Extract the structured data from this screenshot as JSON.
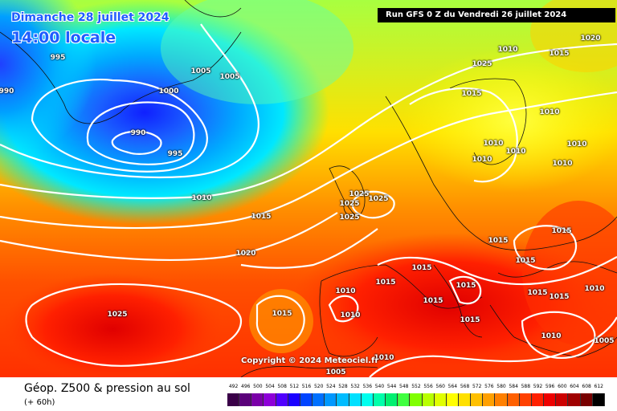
{
  "header": {
    "date_title": "Dimanche 28 juillet 2024",
    "time_title": "14:00 locale",
    "run_info": "Run GFS 0 Z du Vendredi 26 juillet 2024"
  },
  "copyright": "Copyright © 2024 Meteociel.fr",
  "legend": {
    "parameter": "Géop. Z500 & pression au sol",
    "lead_time": "(+ 60h)",
    "scale_values": [
      "492",
      "496",
      "500",
      "504",
      "508",
      "512",
      "516",
      "520",
      "524",
      "528",
      "532",
      "536",
      "540",
      "544",
      "548",
      "552",
      "556",
      "560",
      "564",
      "568",
      "572",
      "576",
      "580",
      "584",
      "588",
      "592",
      "596",
      "600",
      "604",
      "608",
      "612"
    ],
    "scale_colors": [
      "#3a0048",
      "#5a007a",
      "#7a00a8",
      "#8e00d8",
      "#5000ff",
      "#1a00ff",
      "#0044ff",
      "#0070ff",
      "#0098ff",
      "#00bcff",
      "#00e0ff",
      "#00ffee",
      "#00ffaa",
      "#00f070",
      "#40ff40",
      "#80ff00",
      "#b8ff00",
      "#e0ff00",
      "#ffff00",
      "#ffe000",
      "#ffc000",
      "#ffa000",
      "#ff8000",
      "#ff6000",
      "#ff4000",
      "#ff2000",
      "#ee0000",
      "#cc0000",
      "#a00000",
      "#780000",
      "#000000"
    ]
  },
  "isobar_labels": [
    "995",
    "990",
    "1000",
    "1005",
    "1005",
    "990",
    "995",
    "1010",
    "1015",
    "1020",
    "1025",
    "1015",
    "1010",
    "1015",
    "1020",
    "1010",
    "1015",
    "1010",
    "1010",
    "1010",
    "1010",
    "1025",
    "1025",
    "1025",
    "1025",
    "1015",
    "1015",
    "1015",
    "1015",
    "1015",
    "1015",
    "1010",
    "1010",
    "1010",
    "1015",
    "1015",
    "1015",
    "1005",
    "1010",
    "1005",
    "1015",
    "1010",
    "1025",
    "1010"
  ]
}
